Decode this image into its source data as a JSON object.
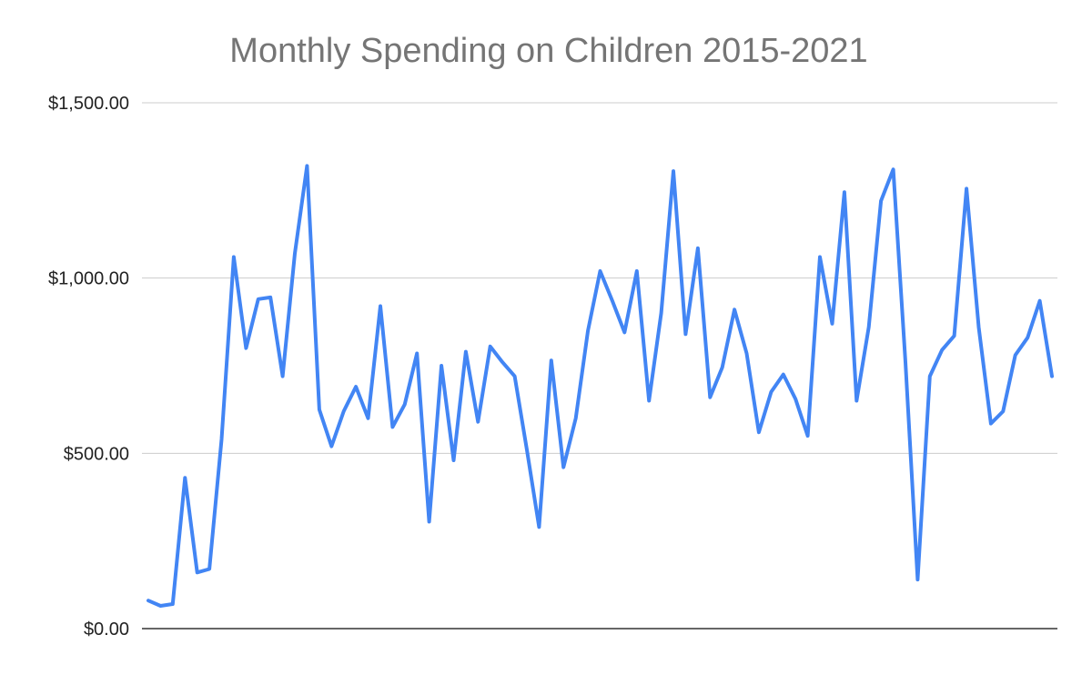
{
  "chart_data": {
    "type": "line",
    "title": "Monthly Spending on Children 2015-2021",
    "xlabel": "",
    "ylabel": "",
    "ylim": [
      0,
      1500
    ],
    "y_ticks": [
      {
        "value": 0,
        "label": "$0.00"
      },
      {
        "value": 500,
        "label": "$500.00"
      },
      {
        "value": 1000,
        "label": "$1,000.00"
      },
      {
        "value": 1500,
        "label": "$1,500.00"
      }
    ],
    "grid": true,
    "legend": "none",
    "series": [
      {
        "color": "#4285f4",
        "values": [
          80,
          65,
          70,
          430,
          160,
          170,
          540,
          1060,
          800,
          940,
          945,
          720,
          1070,
          1320,
          625,
          520,
          620,
          690,
          600,
          920,
          575,
          640,
          785,
          305,
          750,
          480,
          790,
          590,
          805,
          760,
          720,
          510,
          290,
          765,
          460,
          600,
          850,
          1020,
          935,
          845,
          1020,
          650,
          900,
          1305,
          840,
          1085,
          660,
          745,
          910,
          785,
          560,
          675,
          725,
          655,
          550,
          1060,
          870,
          1245,
          650,
          860,
          1220,
          1310,
          760,
          140,
          720,
          795,
          835,
          1255,
          860,
          585,
          620,
          780,
          830,
          935,
          720
        ]
      }
    ]
  }
}
